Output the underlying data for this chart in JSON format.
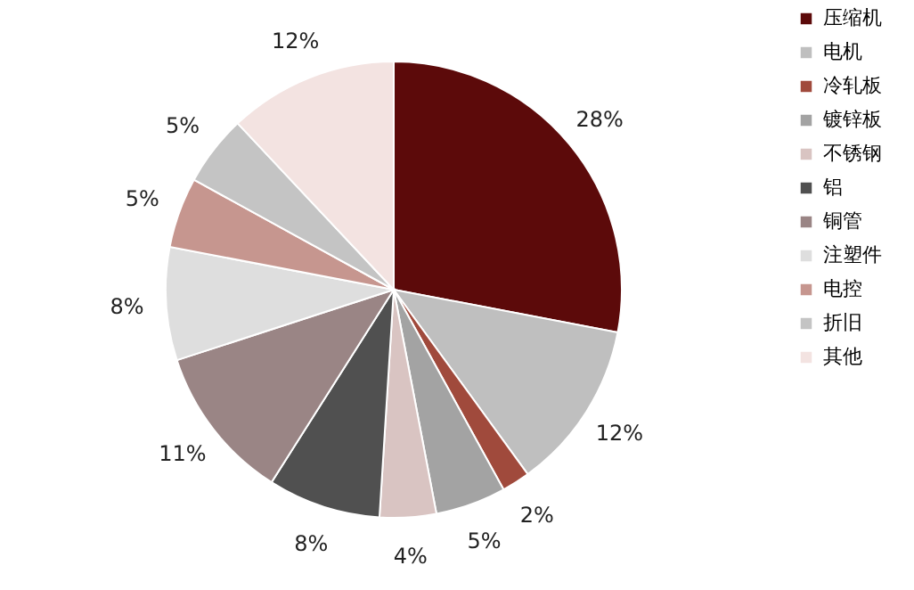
{
  "chart_data": {
    "type": "pie",
    "categories": [
      "压缩机",
      "电机",
      "冷轧板",
      "镀锌板",
      "不锈钢",
      "铝",
      "铜管",
      "注塑件",
      "电控",
      "折旧",
      "其他"
    ],
    "values": [
      28,
      12,
      2,
      5,
      4,
      8,
      11,
      8,
      5,
      5,
      12
    ],
    "colors": [
      "#5c0a0a",
      "#bfbfbf",
      "#a04a3c",
      "#a3a3a3",
      "#d9c4c2",
      "#505050",
      "#9a8585",
      "#dedede",
      "#c6968f",
      "#c4c4c4",
      "#f3e3e1"
    ],
    "value_labels": [
      "28%",
      "12%",
      "2%",
      "5%",
      "4%",
      "8%",
      "11%",
      "8%",
      "5%",
      "5%",
      "12%"
    ],
    "legend": "right"
  }
}
